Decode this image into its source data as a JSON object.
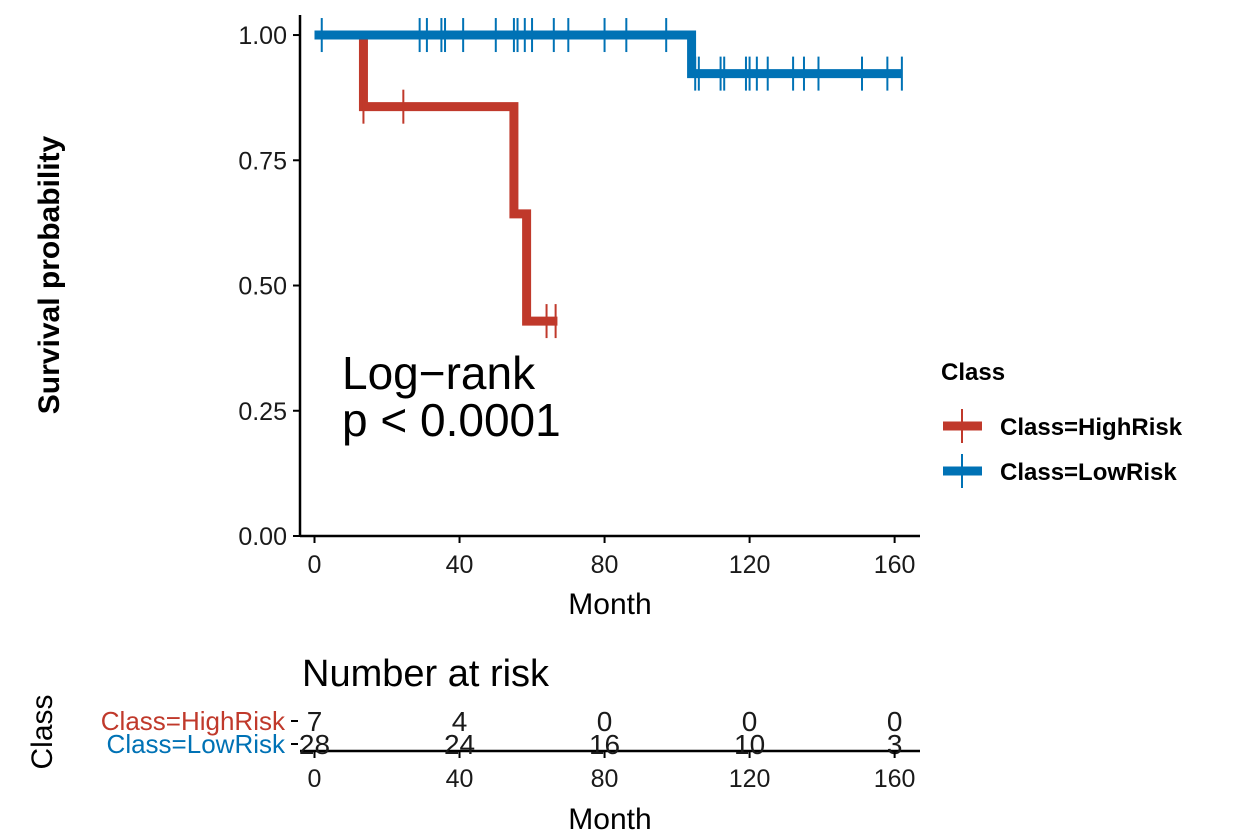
{
  "chart_data": [
    {
      "type": "line",
      "subtype": "kaplan-meier-survival",
      "xlabel": "Month",
      "ylabel": "Survival probability",
      "xlim": [
        -4,
        167
      ],
      "ylim": [
        0,
        1.04
      ],
      "x_ticks": [
        0,
        40,
        80,
        120,
        160
      ],
      "y_ticks": [
        0.0,
        0.25,
        0.5,
        0.75,
        1.0
      ],
      "y_tick_labels": [
        "0.00",
        "0.25",
        "0.50",
        "0.75",
        "1.00"
      ],
      "grid": false,
      "annotation": [
        "Log−rank",
        "p < 0.0001"
      ],
      "legend": {
        "title": "Class",
        "position": "right"
      },
      "series": [
        {
          "name": "Class=HighRisk",
          "color": "#C0392B",
          "steps": [
            [
              0,
              1.0
            ],
            [
              13.5,
              0.857
            ],
            [
              55,
              0.643
            ],
            [
              58.5,
              0.429
            ],
            [
              67,
              0.429
            ]
          ],
          "censor_x": [
            13.5,
            24.5,
            64,
            66.5
          ]
        },
        {
          "name": "Class=LowRisk",
          "color": "#0072B5",
          "steps": [
            [
              0,
              1.0
            ],
            [
              104,
              0.923
            ],
            [
              162,
              0.923
            ]
          ],
          "censor_x": [
            2,
            29,
            31,
            35,
            36,
            41,
            50,
            55,
            56,
            58,
            60,
            66,
            70,
            80,
            86,
            97,
            105,
            106,
            112,
            113,
            119,
            120,
            122,
            125,
            132,
            135,
            139,
            151,
            158,
            162
          ]
        }
      ]
    },
    {
      "type": "table",
      "title": "Number at risk",
      "xlabel": "Month",
      "ylabel": "Class",
      "x_ticks": [
        0,
        40,
        80,
        120,
        160
      ],
      "rows": [
        {
          "name": "Class=HighRisk",
          "color": "#C0392B",
          "values": [
            "7",
            "4",
            "0",
            "0",
            "0"
          ]
        },
        {
          "name": "Class=LowRisk",
          "color": "#0072B5",
          "values": [
            "28",
            "24",
            "16",
            "10",
            "3"
          ]
        }
      ]
    }
  ]
}
